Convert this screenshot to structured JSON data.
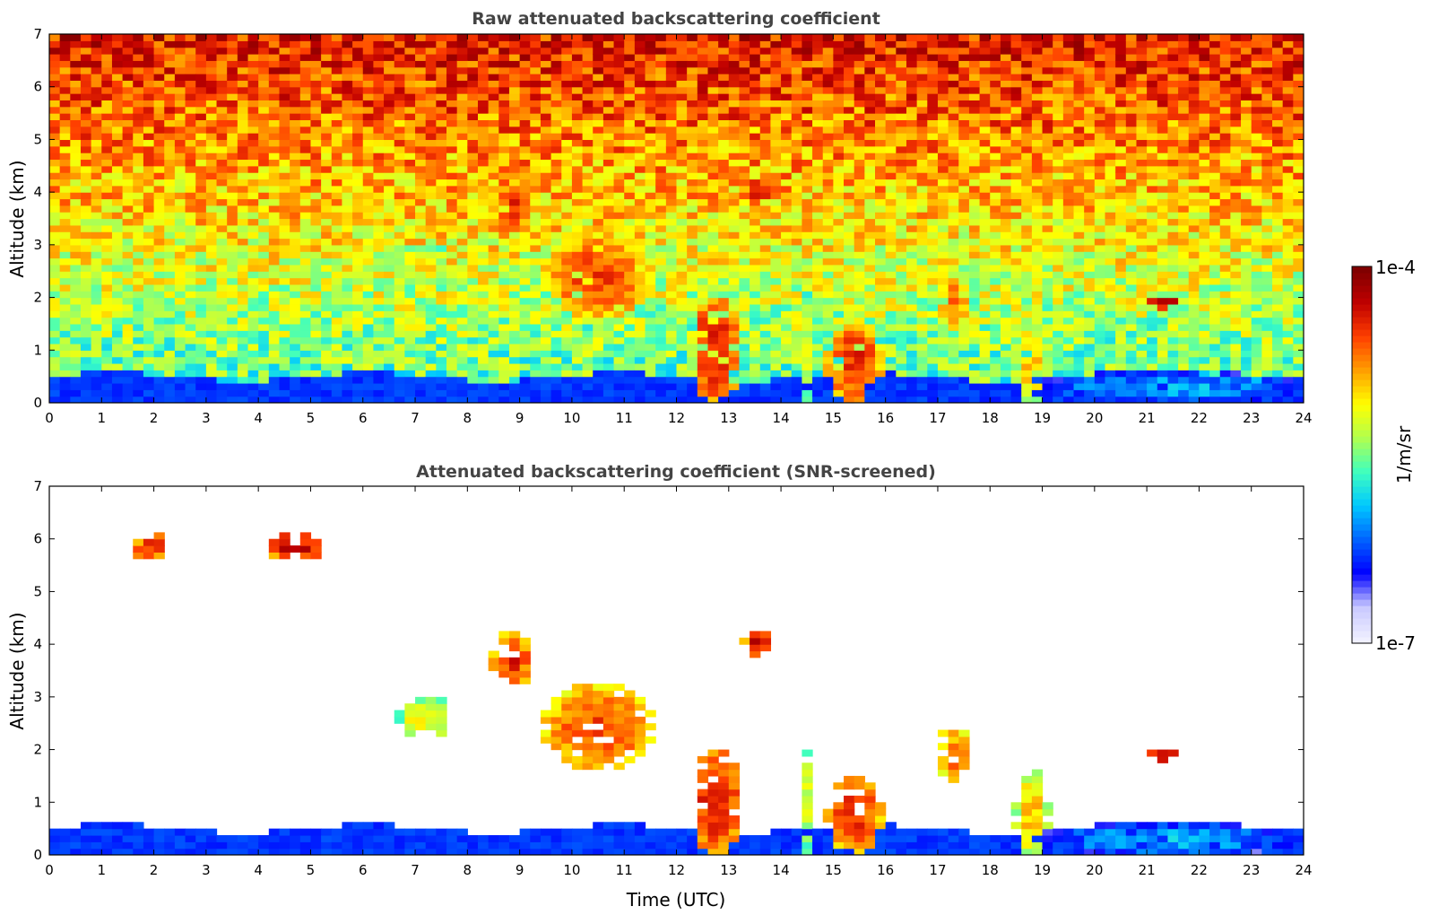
{
  "colors": {
    "colormap": [
      "#f0f0ff",
      "#c8c8ff",
      "#0000ff",
      "#0064ff",
      "#00c8ff",
      "#3fffbf",
      "#b0ff4f",
      "#ffff00",
      "#ffa000",
      "#ff4000",
      "#c00000",
      "#800000"
    ],
    "text": "#000000",
    "title": "#444444"
  },
  "chart_data": [
    {
      "type": "heatmap",
      "title": "Raw attenuated backscattering coefficient",
      "xlabel": "",
      "ylabel": "Altitude (km)",
      "xlim": [
        0,
        24
      ],
      "ylim": [
        0,
        7
      ],
      "xticks": [
        "0",
        "1",
        "2",
        "3",
        "4",
        "5",
        "6",
        "7",
        "8",
        "9",
        "10",
        "11",
        "12",
        "13",
        "14",
        "15",
        "16",
        "17",
        "18",
        "19",
        "20",
        "21",
        "22",
        "23",
        "24"
      ],
      "yticks": [
        "0",
        "1",
        "2",
        "3",
        "4",
        "5",
        "6",
        "7"
      ],
      "value_scale": "log",
      "features": [
        {
          "kind": "boundary_layer",
          "x": [
            0,
            24
          ],
          "alt_top_km": 0.5,
          "level": 0.2
        },
        {
          "kind": "aerosol_layer",
          "x": [
            19.0,
            23.8
          ],
          "alt_km": [
            0.0,
            0.6
          ],
          "level": 0.35
        },
        {
          "kind": "cloud",
          "x": [
            1.6,
            2.3
          ],
          "alt_km": [
            5.6,
            6.1
          ],
          "level": 0.85
        },
        {
          "kind": "cloud",
          "x": [
            4.2,
            5.2
          ],
          "alt_km": [
            5.6,
            6.1
          ],
          "level": 0.92
        },
        {
          "kind": "cloud",
          "x": [
            6.7,
            7.7
          ],
          "alt_km": [
            2.2,
            3.0
          ],
          "level": 0.65
        },
        {
          "kind": "cloud",
          "x": [
            8.5,
            9.2
          ],
          "alt_km": [
            3.2,
            4.2
          ],
          "level": 0.85
        },
        {
          "kind": "cloud",
          "x": [
            9.5,
            11.5
          ],
          "alt_km": [
            1.6,
            3.2
          ],
          "level": 0.82
        },
        {
          "kind": "cloud",
          "x": [
            12.3,
            13.2
          ],
          "alt_km": [
            0.0,
            2.0
          ],
          "level": 0.88
        },
        {
          "kind": "cloud",
          "x": [
            13.3,
            13.8
          ],
          "alt_km": [
            3.8,
            4.3
          ],
          "level": 0.9
        },
        {
          "kind": "cloud",
          "x": [
            14.4,
            14.7
          ],
          "alt_km": [
            0.0,
            2.1
          ],
          "level": 0.6
        },
        {
          "kind": "cloud",
          "x": [
            14.9,
            15.9
          ],
          "alt_km": [
            0.0,
            1.5
          ],
          "level": 0.85
        },
        {
          "kind": "cloud",
          "x": [
            17.0,
            17.6
          ],
          "alt_km": [
            1.4,
            2.4
          ],
          "level": 0.78
        },
        {
          "kind": "cloud",
          "x": [
            18.5,
            19.1
          ],
          "alt_km": [
            0.0,
            1.6
          ],
          "level": 0.7
        },
        {
          "kind": "cloud",
          "x": [
            21.0,
            21.6
          ],
          "alt_km": [
            1.8,
            2.0
          ],
          "level": 0.95
        }
      ]
    },
    {
      "type": "heatmap",
      "title": "Attenuated backscattering coefficient (SNR-screened)",
      "xlabel": "Time (UTC)",
      "ylabel": "Altitude (km)",
      "xlim": [
        0,
        24
      ],
      "ylim": [
        0,
        7
      ],
      "xticks": [
        "0",
        "1",
        "2",
        "3",
        "4",
        "5",
        "6",
        "7",
        "8",
        "9",
        "10",
        "11",
        "12",
        "13",
        "14",
        "15",
        "16",
        "17",
        "18",
        "19",
        "20",
        "21",
        "22",
        "23",
        "24"
      ],
      "yticks": [
        "0",
        "1",
        "2",
        "3",
        "4",
        "5",
        "6",
        "7"
      ],
      "value_scale": "log",
      "screened": true
    }
  ],
  "colorbar": {
    "label": "1/m/sr",
    "min_label": "1e-7",
    "max_label": "1e-4",
    "min": 1e-07,
    "max": 0.0001,
    "scale": "log"
  }
}
